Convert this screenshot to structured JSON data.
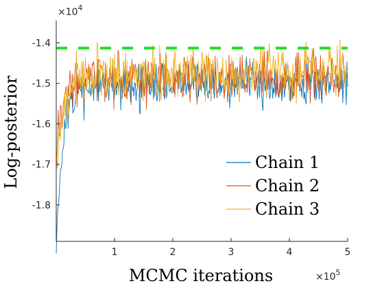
{
  "chart_data": {
    "type": "line",
    "xlabel": "MCMC iterations",
    "ylabel": "Log-posterior",
    "x_multiplier": "×10",
    "x_multiplier_exp": "5",
    "y_multiplier": "×10",
    "y_multiplier_exp": "4",
    "xlim": [
      0,
      500000
    ],
    "ylim": [
      -18900,
      -13450
    ],
    "x_ticks": [
      100000,
      200000,
      300000,
      400000,
      500000
    ],
    "x_tick_labels": [
      "1",
      "2",
      "3",
      "4",
      "5"
    ],
    "y_ticks": [
      -18000,
      -17000,
      -16000,
      -15000,
      -14000
    ],
    "y_tick_labels": [
      "-1.8",
      "-1.7",
      "-1.6",
      "-1.5",
      "-1.4"
    ],
    "grid": false,
    "legend_position": "bottom-right",
    "reference_line": {
      "y": -14130,
      "color": "#22e11f",
      "style": "dashed"
    },
    "series": [
      {
        "name": "Chain 1",
        "color": "#0072bd",
        "start": -18800,
        "level": -15050,
        "amplitude": 600,
        "seed": 11
      },
      {
        "name": "Chain 2",
        "color": "#d95319",
        "start": -16500,
        "level": -14900,
        "amplitude": 650,
        "seed": 23
      },
      {
        "name": "Chain 3",
        "color": "#edb120",
        "start": -17200,
        "level": -14800,
        "amplitude": 700,
        "seed": 37
      }
    ]
  }
}
